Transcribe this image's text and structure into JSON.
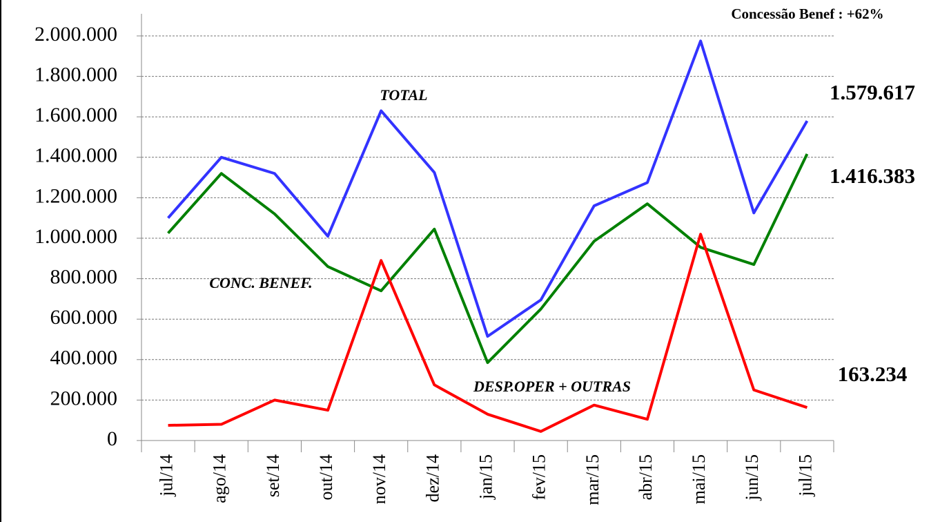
{
  "chart_data": {
    "type": "line",
    "annotation": "Concessão  Benef : +62%",
    "categories": [
      "jul/14",
      "ago/14",
      "set/14",
      "out/14",
      "nov/14",
      "dez/14",
      "jan/15",
      "fev/15",
      "mar/15",
      "abr/15",
      "mai/15",
      "jun/15",
      "jul/15"
    ],
    "series": [
      {
        "name": "TOTAL",
        "color": "#3333ff",
        "values": [
          1100000,
          1400000,
          1320000,
          1010000,
          1630000,
          1325000,
          515000,
          695000,
          1160000,
          1275000,
          1975000,
          1125000,
          1579617
        ],
        "value_labels": [
          null,
          null,
          null,
          null,
          null,
          null,
          null,
          null,
          null,
          null,
          null,
          null,
          "1.579.617"
        ]
      },
      {
        "name": "CONC. BENEF.",
        "color": "#008000",
        "values": [
          1025000,
          1320000,
          1120000,
          860000,
          740000,
          1045000,
          385000,
          650000,
          985000,
          1170000,
          955000,
          870000,
          1416383
        ],
        "value_labels": [
          null,
          null,
          null,
          null,
          null,
          null,
          null,
          null,
          null,
          null,
          null,
          null,
          "1.416.383"
        ]
      },
      {
        "name": "DESP.OPER + OUTRAS",
        "color": "#ff0000",
        "values": [
          75000,
          80000,
          200000,
          150000,
          890000,
          275000,
          130000,
          45000,
          175000,
          105000,
          1020000,
          250000,
          163234
        ],
        "value_labels": [
          null,
          null,
          null,
          null,
          null,
          null,
          null,
          null,
          null,
          null,
          null,
          null,
          "163.234"
        ]
      }
    ],
    "ylim": [
      0,
      2000000
    ],
    "yticks": [
      0,
      {
        "value": 200000,
        "label": "200.000"
      },
      {
        "value": 400000,
        "label": "400.000"
      },
      {
        "value": 600000,
        "label": "600.000"
      },
      {
        "value": 800000,
        "label": "800.000"
      },
      {
        "value": 1000000,
        "label": "1.000.000"
      },
      {
        "value": 1200000,
        "label": "1.200.000"
      },
      {
        "value": 1400000,
        "label": "1.400.000"
      },
      {
        "value": 1600000,
        "label": "1.600.000"
      },
      {
        "value": 1800000,
        "label": "1.800.000"
      },
      {
        "value": 2000000,
        "label": "2.000.000"
      }
    ],
    "grid": true
  }
}
